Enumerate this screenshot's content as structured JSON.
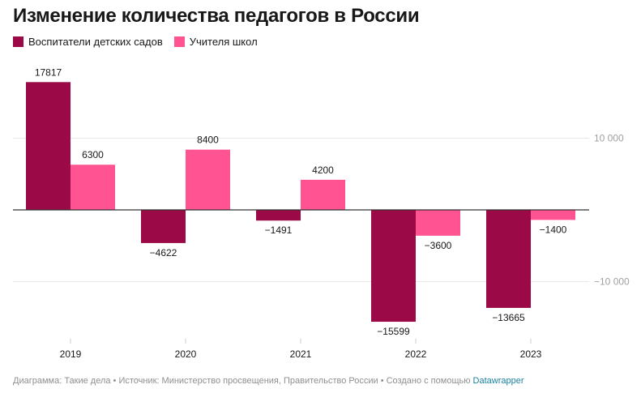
{
  "title": "Изменение количества педагогов в России",
  "colors": {
    "series_0": "#9b0a47",
    "series_1": "#ff5392",
    "grid": "#e8e8e8",
    "zero": "#333333",
    "tick": "#a0a0a0"
  },
  "footer": {
    "text": "Диаграмма: Такие дела • Источник: Министерство просвещения, Правительство России • Создано с помощью",
    "link": "Datawrapper"
  },
  "chart_data": {
    "type": "bar",
    "title": "Изменение количества педагогов в России",
    "categories": [
      "2019",
      "2020",
      "2021",
      "2022",
      "2023"
    ],
    "series": [
      {
        "name": "Воспитатели детских садов",
        "values": [
          17817,
          -4622,
          -1491,
          -15599,
          -13665
        ]
      },
      {
        "name": "Учителя школ",
        "values": [
          6300,
          8400,
          4200,
          -3600,
          -1400
        ]
      }
    ],
    "value_labels": [
      [
        "17817",
        "−4622",
        "−1491",
        "−15599",
        "−13665"
      ],
      [
        "6300",
        "8400",
        "4200",
        "−3600",
        "−1400"
      ]
    ],
    "yticks": [
      10000,
      -10000
    ],
    "ytick_labels": [
      "10 000",
      "−10 000"
    ],
    "ylim": [
      -16000,
      18000
    ],
    "grid": true,
    "legend": "top-left",
    "xlabel": "",
    "ylabel": ""
  }
}
